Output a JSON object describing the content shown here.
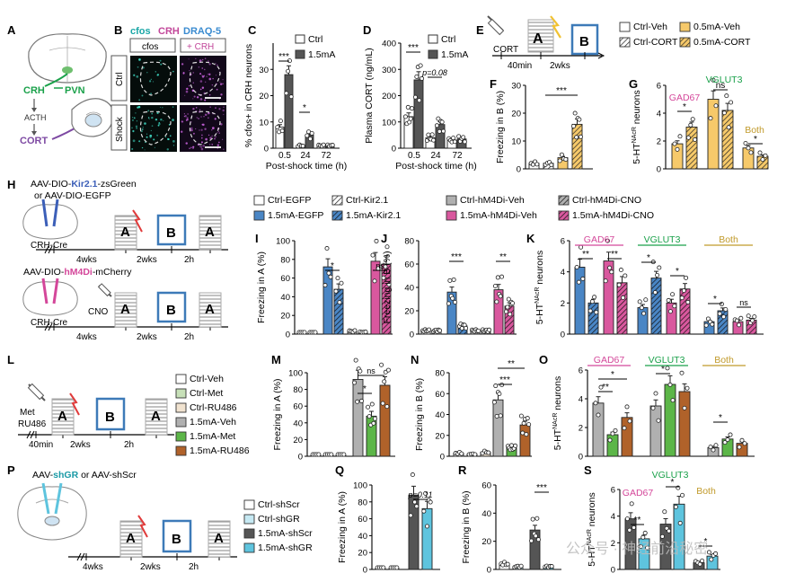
{
  "colors": {
    "gray": "#b0b0b0",
    "dark": "#555555",
    "blue": "#4a86c5",
    "pink": "#d9589e",
    "yellow": "#f6c96a",
    "green": "#5cb648",
    "brown": "#b0622a",
    "cyan": "#5ec4de",
    "label_pink": "#d4479a",
    "label_green": "#1aa14a",
    "label_gold": "#c19a2b",
    "label_blue": "#3c5fb8",
    "cfos": "#1aa6a6",
    "crh": "#c2479a",
    "draq": "#3a8bd0",
    "teal_text": "#1a9aa6"
  },
  "panels": [
    "A",
    "B",
    "C",
    "D",
    "E",
    "F",
    "G",
    "H",
    "I",
    "J",
    "K",
    "L",
    "M",
    "N",
    "O",
    "P",
    "Q",
    "R",
    "S"
  ],
  "A": {
    "crh": "CRH",
    "pvn": "PVN",
    "acth": "ACTH",
    "cort": "CORT"
  },
  "B": {
    "cfos": "cfos",
    "crh": "CRH",
    "draq": "DRAQ-5",
    "col1": "cfos",
    "col2": "+ CRH",
    "row1": "Ctrl",
    "row2": "Shock"
  },
  "C": {
    "ylabel": "% cfos+ in CRH neurons",
    "xlabel": "Post-shock time (h)",
    "xticks": [
      "0.5",
      "24",
      "72"
    ],
    "yticks": [
      "0",
      "10",
      "20",
      "30"
    ],
    "legend": [
      "Ctrl",
      "1.5mA"
    ],
    "sig": [
      "***",
      "*"
    ]
  },
  "D": {
    "ylabel": "Plasma CORT (ng/mL)",
    "xlabel": "Post-shock time (h)",
    "xticks": [
      "0.5",
      "24",
      "72"
    ],
    "yticks": [
      "0",
      "100",
      "200",
      "300",
      "400"
    ],
    "legend": [
      "Ctrl",
      "1.5mA"
    ],
    "sig": [
      "***",
      "p=0.08"
    ]
  },
  "E": {
    "cort": "CORT",
    "a": "A",
    "b": "B",
    "t1": "40min",
    "t2": "2wks",
    "legend": [
      "Ctrl-Veh",
      "Ctrl-CORT",
      "0.5mA-Veh",
      "0.5mA-CORT"
    ]
  },
  "F": {
    "ylabel": "Freezing in B (%)",
    "yticks": [
      "0",
      "10",
      "20",
      "30"
    ],
    "sig": "***"
  },
  "G": {
    "ylabel": "5-HT neurons (x100)",
    "sup": "NAcR",
    "yticks": [
      "0",
      "2",
      "4",
      "6"
    ],
    "groups": [
      "GAD67",
      "VGLUT3",
      "Both"
    ],
    "sig": [
      "*",
      "ns",
      "*"
    ]
  },
  "H": {
    "v1a": "AAV-DIO-",
    "v1b": "Kir2.1",
    "v1c": "-zsGreen",
    "v2": "or AAV-DIO-EGFP",
    "mouse": "CRH-Cre",
    "v3a": "AAV-DIO-",
    "v3b": "hM4Di",
    "v3c": "-mCherry",
    "mouse2": "CRH-Cre",
    "cno": "CNO",
    "a": "A",
    "b": "B",
    "t1": "4wks",
    "t2": "2wks",
    "t3": "2h",
    "legend": [
      "Ctrl-EGFP",
      "Ctrl-Kir2.1",
      "1.5mA-EGFP",
      "1.5mA-Kir2.1",
      "Ctrl-hM4Di-Veh",
      "Ctrl-hM4Di-CNO",
      "1.5mA-hM4Di-Veh",
      "1.5mA-hM4Di-CNO"
    ]
  },
  "I": {
    "ylabel": "Freezing in A (%)",
    "yticks": [
      "0",
      "20",
      "40",
      "60",
      "80",
      "100"
    ],
    "sig": [
      "*",
      "ns"
    ]
  },
  "J": {
    "ylabel": "Freezing in B (%)",
    "yticks": [
      "0",
      "20",
      "40",
      "60",
      "80"
    ],
    "sig": [
      "***",
      "**"
    ]
  },
  "K": {
    "ylabel": "5-HT neurons",
    "sup": "NAcR",
    "ylabel2": "(x100)",
    "yticks": [
      "0",
      "2",
      "4",
      "6"
    ],
    "groups": [
      "GAD67",
      "VGLUT3",
      "Both"
    ],
    "sig": [
      "**",
      "**",
      "*",
      "*",
      "*",
      "ns"
    ]
  },
  "L": {
    "drug1": "Met",
    "drug2": "RU486",
    "a": "A",
    "b": "B",
    "t1": "40min",
    "t2": "2wks",
    "t3": "2h",
    "legend": [
      "Ctrl-Veh",
      "Ctrl-Met",
      "Ctrl-RU486",
      "1.5mA-Veh",
      "1.5mA-Met",
      "1.5mA-RU486"
    ]
  },
  "M": {
    "ylabel": "Freezing in A (%)",
    "yticks": [
      "0",
      "20",
      "40",
      "60",
      "80",
      "100"
    ],
    "sig": [
      "ns",
      "*"
    ]
  },
  "N": {
    "ylabel": "Freezing in B (%)",
    "yticks": [
      "0",
      "20",
      "40",
      "60",
      "80"
    ],
    "sig": [
      "**",
      "***"
    ]
  },
  "O": {
    "ylabel": "5-HT neurons",
    "sup": "NAcR",
    "yticks": [
      "0",
      "2",
      "4",
      "6"
    ],
    "groups": [
      "GAD67",
      "VGLUT3",
      "Both"
    ],
    "sig": [
      "*",
      "**",
      "*",
      "*"
    ]
  },
  "P": {
    "v1": "AAV-",
    "v2": "shGR",
    "v3": " or AAV-shScr",
    "a": "A",
    "b": "B",
    "t1": "4wks",
    "t2": "2wks",
    "t3": "2h",
    "legend": [
      "Ctrl-shScr",
      "Ctrl-shGR",
      "1.5mA-shScr",
      "1.5mA-shGR"
    ]
  },
  "Q": {
    "ylabel": "Freezing in A (%)",
    "yticks": [
      "0",
      "20",
      "40",
      "60",
      "80",
      "100"
    ],
    "sig": "p=0.11"
  },
  "R": {
    "ylabel": "Freezing in B (%)",
    "yticks": [
      "0",
      "20",
      "40",
      "60"
    ],
    "sig": "***"
  },
  "S": {
    "ylabel": "5-HT neurons",
    "sup": "NAcR",
    "yticks": [
      "0",
      "2",
      "4",
      "6"
    ],
    "groups": [
      "GAD67",
      "VGLUT3",
      "Both"
    ],
    "sig": [
      "**",
      "*",
      "*"
    ]
  },
  "watermark": "公众号 · 神经前沿秘密",
  "chart_data": [
    {
      "panel": "C",
      "type": "bar",
      "categories": [
        "0.5",
        "24",
        "72"
      ],
      "series": [
        {
          "name": "Ctrl",
          "values": [
            8,
            1,
            1
          ]
        },
        {
          "name": "1.5mA",
          "values": [
            28,
            5,
            1
          ]
        }
      ],
      "ylim": [
        0,
        40
      ]
    },
    {
      "panel": "D",
      "type": "bar",
      "categories": [
        "0.5",
        "24",
        "72"
      ],
      "series": [
        {
          "name": "Ctrl",
          "values": [
            120,
            40,
            30
          ]
        },
        {
          "name": "1.5mA",
          "values": [
            260,
            90,
            35
          ]
        }
      ],
      "ylim": [
        0,
        400
      ]
    },
    {
      "panel": "F",
      "type": "bar",
      "categories": [
        "Ctrl-Veh",
        "Ctrl-CORT",
        "0.5mA-Veh",
        "0.5mA-CORT"
      ],
      "values": [
        2,
        2,
        4,
        16
      ],
      "ylim": [
        0,
        30
      ]
    },
    {
      "panel": "G",
      "type": "bar",
      "categories": [
        "GAD67",
        "VGLUT3",
        "Both"
      ],
      "series": [
        {
          "name": "0.5mA-Veh",
          "values": [
            1.8,
            5.0,
            1.5
          ]
        },
        {
          "name": "0.5mA-CORT",
          "values": [
            3.0,
            4.2,
            0.9
          ]
        }
      ],
      "ylim": [
        0,
        6
      ]
    },
    {
      "panel": "I",
      "type": "bar",
      "categories": [
        "Ctrl-EGFP",
        "Ctrl-Kir2.1",
        "1.5mA-EGFP",
        "1.5mA-Kir2.1",
        "Ctrl-hM4Di-Veh",
        "Ctrl-hM4Di-CNO",
        "1.5mA-hM4Di-Veh",
        "1.5mA-hM4Di-CNO"
      ],
      "values": [
        1,
        1,
        72,
        48,
        3,
        2,
        78,
        75
      ],
      "ylim": [
        0,
        100
      ]
    },
    {
      "panel": "J",
      "type": "bar",
      "categories": [
        "Ctrl-EGFP",
        "Ctrl-Kir2.1",
        "1.5mA-EGFP",
        "1.5mA-Kir2.1",
        "Ctrl-hM4Di-Veh",
        "Ctrl-hM4Di-CNO",
        "1.5mA-hM4Di-Veh",
        "1.5mA-hM4Di-CNO"
      ],
      "values": [
        3,
        3,
        36,
        7,
        3,
        3,
        38,
        24
      ],
      "ylim": [
        0,
        80
      ]
    },
    {
      "panel": "K",
      "type": "bar",
      "categories": [
        "GAD67",
        "VGLUT3",
        "Both"
      ],
      "series": [
        {
          "name": "1.5mA-EGFP",
          "values": [
            4.3,
            1.7,
            0.8
          ]
        },
        {
          "name": "1.5mA-Kir2.1",
          "values": [
            2.0,
            3.6,
            1.5
          ]
        },
        {
          "name": "1.5mA-hM4Di-Veh",
          "values": [
            4.7,
            2.0,
            0.8
          ]
        },
        {
          "name": "1.5mA-hM4Di-CNO",
          "values": [
            3.3,
            2.9,
            0.9
          ]
        }
      ],
      "ylim": [
        0,
        6
      ]
    },
    {
      "panel": "M",
      "type": "bar",
      "categories": [
        "Ctrl-Veh",
        "Ctrl-Met",
        "Ctrl-RU486",
        "1.5mA-Veh",
        "1.5mA-Met",
        "1.5mA-RU486"
      ],
      "values": [
        1,
        1,
        1,
        92,
        48,
        85
      ],
      "ylim": [
        0,
        100
      ]
    },
    {
      "panel": "N",
      "type": "bar",
      "categories": [
        "Ctrl-Veh",
        "Ctrl-Met",
        "Ctrl-RU486",
        "1.5mA-Veh",
        "1.5mA-Met",
        "1.5mA-RU486"
      ],
      "values": [
        3,
        2,
        4,
        54,
        8,
        30
      ],
      "ylim": [
        0,
        80
      ]
    },
    {
      "panel": "O",
      "type": "bar",
      "categories": [
        "GAD67",
        "VGLUT3",
        "Both"
      ],
      "series": [
        {
          "name": "1.5mA-Veh",
          "values": [
            3.7,
            3.5,
            0.6
          ]
        },
        {
          "name": "1.5mA-Met",
          "values": [
            1.5,
            5.0,
            1.2
          ]
        },
        {
          "name": "1.5mA-RU486",
          "values": [
            2.7,
            4.5,
            0.9
          ]
        }
      ],
      "ylim": [
        0,
        6
      ]
    },
    {
      "panel": "Q",
      "type": "bar",
      "categories": [
        "Ctrl-shScr",
        "Ctrl-shGR",
        "1.5mA-shScr",
        "1.5mA-shGR"
      ],
      "values": [
        1,
        1,
        88,
        72
      ],
      "ylim": [
        0,
        100
      ]
    },
    {
      "panel": "R",
      "type": "bar",
      "categories": [
        "Ctrl-shScr",
        "Ctrl-shGR",
        "1.5mA-shScr",
        "1.5mA-shGR"
      ],
      "values": [
        4,
        2,
        28,
        2
      ],
      "ylim": [
        0,
        60
      ]
    },
    {
      "panel": "S",
      "type": "bar",
      "categories": [
        "GAD67",
        "VGLUT3",
        "Both"
      ],
      "series": [
        {
          "name": "1.5mA-shScr",
          "values": [
            3.8,
            3.4,
            0.5
          ]
        },
        {
          "name": "1.5mA-shGR",
          "values": [
            2.3,
            4.9,
            1.0
          ]
        }
      ],
      "ylim": [
        0,
        6
      ]
    }
  ]
}
